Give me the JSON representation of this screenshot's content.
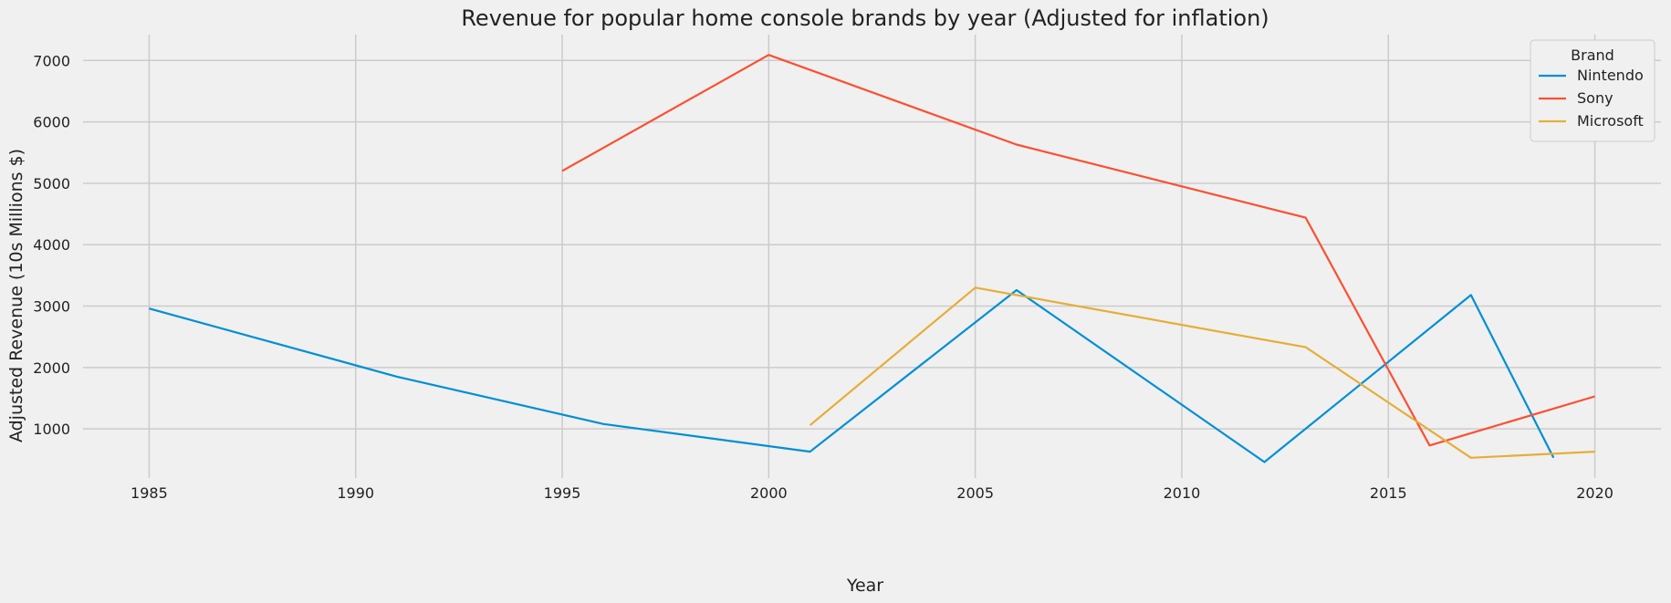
{
  "chart_data": {
    "type": "line",
    "title": "Revenue for popular home console brands by year (Adjusted for inflation)",
    "xlabel": "Year",
    "ylabel": "Adjusted Revenue (10s Millions $)",
    "xlim": [
      1983.4,
      2021.6
    ],
    "ylim": [
      200,
      7420
    ],
    "xticks": [
      1985,
      1990,
      1995,
      2000,
      2005,
      2010,
      2015,
      2020
    ],
    "yticks": [
      1000,
      2000,
      3000,
      4000,
      5000,
      6000,
      7000
    ],
    "grid": true,
    "legend": {
      "title": "Brand",
      "placement": "top-right"
    },
    "series": [
      {
        "name": "Nintendo",
        "color": "#008fd5",
        "x": [
          1985,
          1991,
          1996,
          2001,
          2006,
          2012,
          2017,
          2019
        ],
        "y": [
          2960,
          1850,
          1080,
          630,
          3260,
          460,
          3180,
          530
        ]
      },
      {
        "name": "Sony",
        "color": "#fc4f30",
        "x": [
          1995,
          2000,
          2006,
          2013,
          2016,
          2020
        ],
        "y": [
          5200,
          7090,
          5630,
          4440,
          730,
          1530
        ]
      },
      {
        "name": "Microsoft",
        "color": "#e5ae38",
        "x": [
          2001,
          2005,
          2013,
          2017,
          2020
        ],
        "y": [
          1060,
          3300,
          2330,
          530,
          630
        ]
      }
    ]
  }
}
